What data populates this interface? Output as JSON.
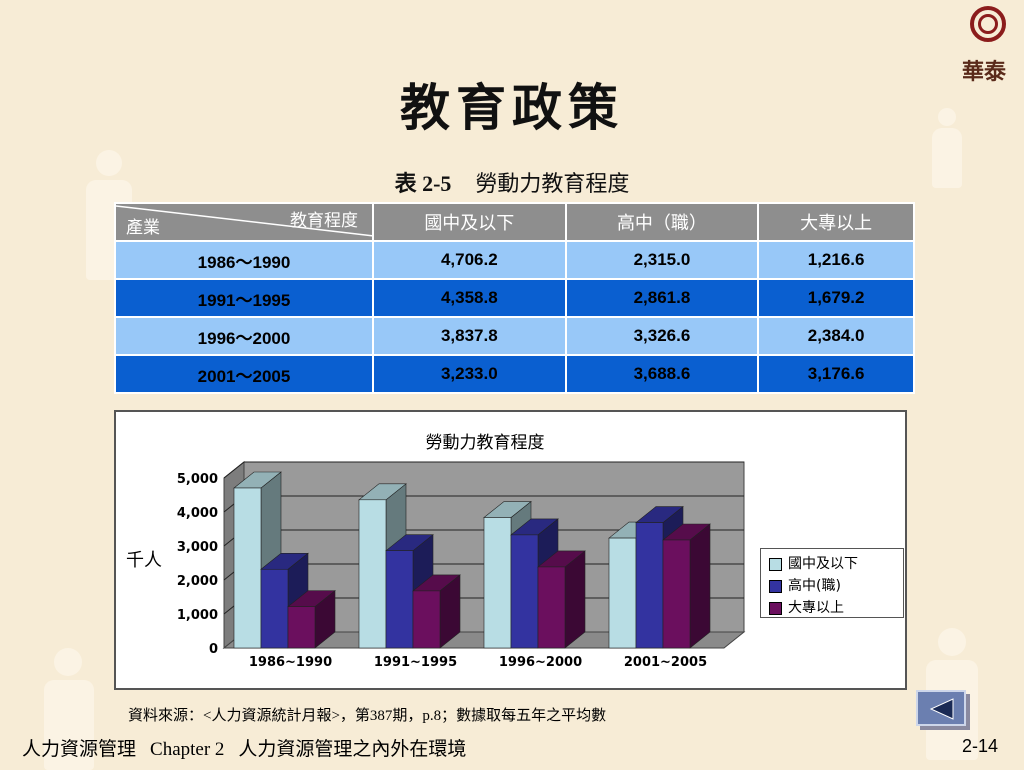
{
  "slide": {
    "title": "教育政策",
    "logo_text": "華泰",
    "table_caption_num": "表 2-5",
    "table_caption_title": "勞動力教育程度",
    "source": "資料來源：<人力資源統計月報>，第387期，p.8；數據取每五年之平均數",
    "footer_course": "人力資源管理",
    "footer_chapter": "Chapter 2",
    "footer_chapter_title": "人力資源管理之內外在環境",
    "page_number": "2-14",
    "nav_icon": "triangle-left-icon"
  },
  "table": {
    "corner_top": "教育程度",
    "corner_bottom": "產業",
    "headers": [
      "國中及以下",
      "高中（職）",
      "大專以上"
    ],
    "rows": [
      {
        "period": "1986～1990",
        "values": [
          "4,706.2",
          "2,315.0",
          "1,216.6"
        ]
      },
      {
        "period": "1991～1995",
        "values": [
          "4,358.8",
          "2,861.8",
          "1,679.2"
        ]
      },
      {
        "period": "1996～2000",
        "values": [
          "3,837.8",
          "3,326.6",
          "2,384.0"
        ]
      },
      {
        "period": "2001～2005",
        "values": [
          "3,233.0",
          "3,688.6",
          "3,176.6"
        ]
      }
    ],
    "colors": {
      "header": "#8e8e8e",
      "row_light": "#98c8f8",
      "row_dark": "#0a5fd0"
    }
  },
  "chart_data": {
    "type": "bar",
    "title": "勞動力教育程度",
    "ylabel": "千人",
    "xlabel": "",
    "categories": [
      "1986~1990",
      "1991~1995",
      "1996~2000",
      "2001~2005"
    ],
    "yticks": [
      "0",
      "1,000",
      "2,000",
      "3,000",
      "4,000",
      "5,000"
    ],
    "ylim": [
      0,
      5000
    ],
    "grid": true,
    "legend_position": "right",
    "three_d": true,
    "series": [
      {
        "name": "國中及以下",
        "values": [
          4706.2,
          4358.8,
          3837.8,
          3233.0
        ],
        "color": "#b8dde4"
      },
      {
        "name": "高中(職)",
        "values": [
          2315.0,
          2861.8,
          3326.6,
          3688.6
        ],
        "color": "#3333a0"
      },
      {
        "name": "大專以上",
        "values": [
          1216.6,
          1679.2,
          2384.0,
          3176.6
        ],
        "color": "#6b0f5e"
      }
    ]
  }
}
